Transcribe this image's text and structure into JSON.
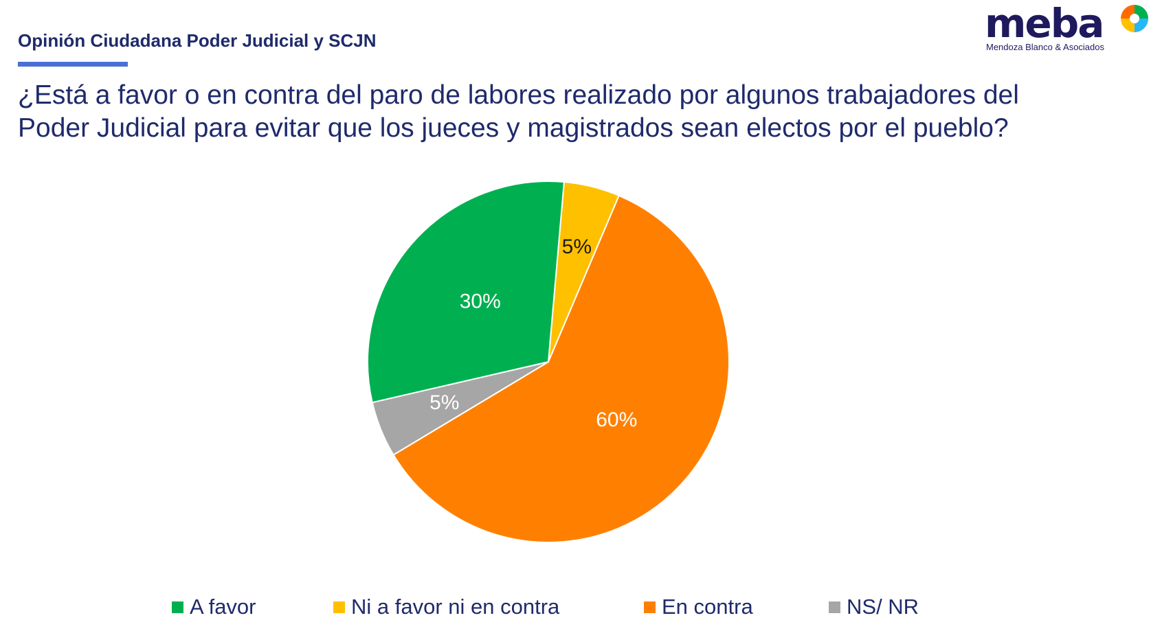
{
  "header": {
    "title": "Opinión Ciudadana Poder Judicial y SCJN"
  },
  "question": "¿Está a favor o en contra del paro de labores realizado por algunos trabajadores del Poder Judicial para evitar que los jueces y magistrados sean electos por el pueblo?",
  "logo": {
    "wordmark": "meba",
    "subtitle": "Mendoza Blanco & Asociados"
  },
  "colors": {
    "title": "#1f2a6b",
    "accent_underline": "#4a6fd6",
    "a_favor": "#00b050",
    "ni_a_favor": "#ffc000",
    "en_contra": "#ff8000",
    "ns_nr": "#a6a6a6"
  },
  "chart_data": {
    "type": "pie",
    "title": "",
    "start_angle_deg": 5,
    "direction": "clockwise",
    "legend_position": "bottom",
    "slices": [
      {
        "label": "Ni a favor ni en contra",
        "value": 5,
        "display": "5%",
        "color": "#ffc000",
        "label_color": "#1a1a1a"
      },
      {
        "label": "En contra",
        "value": 60,
        "display": "60%",
        "color": "#ff8000",
        "label_color": "#ffffff"
      },
      {
        "label": "NS/ NR",
        "value": 5,
        "display": "5%",
        "color": "#a6a6a6",
        "label_color": "#ffffff"
      },
      {
        "label": "A favor",
        "value": 30,
        "display": "30%",
        "color": "#00b050",
        "label_color": "#ffffff"
      }
    ],
    "legend": [
      {
        "label": "A favor",
        "color": "#00b050"
      },
      {
        "label": "Ni a favor ni en contra",
        "color": "#ffc000"
      },
      {
        "label": "En contra",
        "color": "#ff8000"
      },
      {
        "label": "NS/ NR",
        "color": "#a6a6a6"
      }
    ]
  }
}
